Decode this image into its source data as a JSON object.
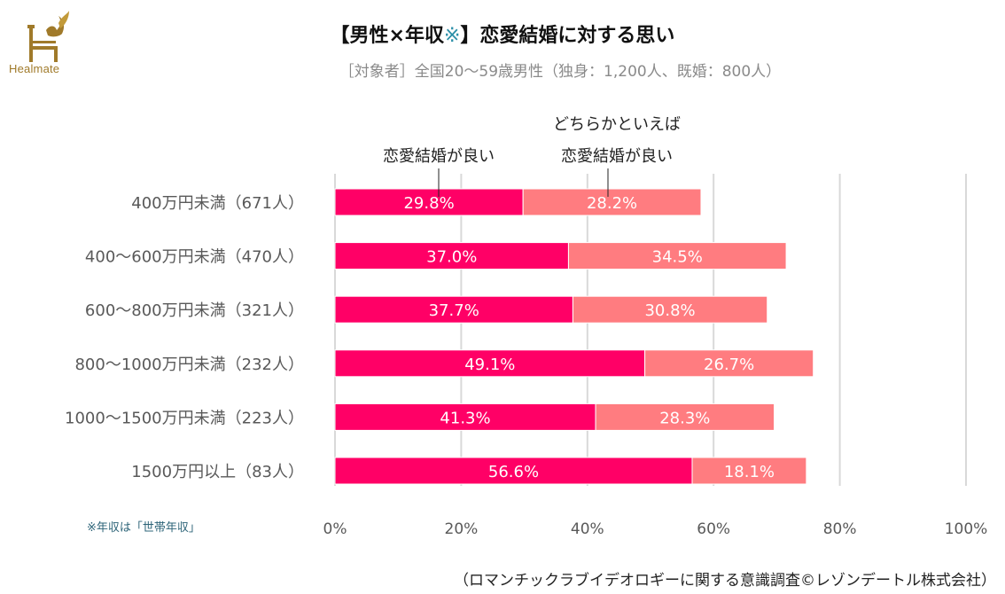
{
  "brand": {
    "name": "Healmate",
    "color": "#a07a2a"
  },
  "header": {
    "title_prefix": "【男性×年収",
    "title_mark": "※",
    "title_suffix": "】恋愛結婚に対する思い",
    "subtitle": "［対象者］全国20～59歳男性（独身：1,200人、既婚：800人）"
  },
  "footnote": "※年収は「世帯年収」",
  "source": "（ロマンチックラブイデオロギーに関する意識調査©レゾンデートル株式会社）",
  "colors": {
    "series1": "#ff0066",
    "series2": "#ff7c80",
    "grid": "#d9d9d9",
    "label": "#595959",
    "data_label": "#ffffff"
  },
  "chart_data": {
    "type": "bar",
    "orientation": "horizontal",
    "stacked": true,
    "title": "【男性×年収※】恋愛結婚に対する思い",
    "xlabel": "",
    "ylabel": "",
    "xlim": [
      0,
      100
    ],
    "x_ticks": [
      "0%",
      "20%",
      "40%",
      "60%",
      "80%",
      "100%"
    ],
    "grid": true,
    "categories": [
      "400万円未満（671人）",
      "400～600万円未満（470人）",
      "600～800万円未満（321人）",
      "800～1000万円未満（232人）",
      "1000～1500万円未満（223人）",
      "1500万円以上（83人）"
    ],
    "series": [
      {
        "name": "恋愛結婚が良い",
        "values": [
          29.8,
          37.0,
          37.7,
          49.1,
          41.3,
          56.6
        ],
        "labels": [
          "29.8%",
          "37.0%",
          "37.7%",
          "49.1%",
          "41.3%",
          "56.6%"
        ]
      },
      {
        "name_line1": "どちらかといえば",
        "name_line2": "恋愛結婚が良い",
        "name": "どちらかといえば恋愛結婚が良い",
        "values": [
          28.2,
          34.5,
          30.8,
          26.7,
          28.3,
          18.1
        ],
        "labels": [
          "28.2%",
          "34.5%",
          "30.8%",
          "26.7%",
          "28.3%",
          "18.1%"
        ]
      }
    ],
    "legend": "callouts-top"
  }
}
